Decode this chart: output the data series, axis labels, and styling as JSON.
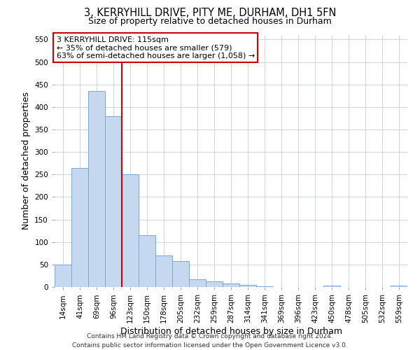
{
  "title_line1": "3, KERRYHILL DRIVE, PITY ME, DURHAM, DH1 5FN",
  "title_line2": "Size of property relative to detached houses in Durham",
  "xlabel": "Distribution of detached houses by size in Durham",
  "ylabel": "Number of detached properties",
  "footer_line1": "Contains HM Land Registry data © Crown copyright and database right 2024.",
  "footer_line2": "Contains public sector information licensed under the Open Government Licence v3.0.",
  "categories": [
    "14sqm",
    "41sqm",
    "69sqm",
    "96sqm",
    "123sqm",
    "150sqm",
    "178sqm",
    "205sqm",
    "232sqm",
    "259sqm",
    "287sqm",
    "314sqm",
    "341sqm",
    "369sqm",
    "396sqm",
    "423sqm",
    "450sqm",
    "478sqm",
    "505sqm",
    "532sqm",
    "559sqm"
  ],
  "values": [
    50,
    265,
    435,
    380,
    250,
    115,
    70,
    58,
    17,
    13,
    8,
    5,
    2,
    0,
    0,
    0,
    3,
    0,
    0,
    0,
    3
  ],
  "bar_color": "#c5d8f0",
  "bar_edge_color": "#7aa8d4",
  "annotation_text_line1": "3 KERRYHILL DRIVE: 115sqm",
  "annotation_text_line2": "← 35% of detached houses are smaller (579)",
  "annotation_text_line3": "63% of semi-detached houses are larger (1,058) →",
  "vline_color": "#cc0000",
  "vline_x": 3.5,
  "annotation_box_edge_color": "#cc0000",
  "annotation_box_face_color": "#ffffff",
  "grid_color": "#d0d8e8",
  "background_color": "#ffffff",
  "ylim": [
    0,
    560
  ],
  "yticks": [
    0,
    50,
    100,
    150,
    200,
    250,
    300,
    350,
    400,
    450,
    500,
    550
  ],
  "title1_fontsize": 10.5,
  "title2_fontsize": 9,
  "annotation_fontsize": 8,
  "xlabel_fontsize": 9,
  "ylabel_fontsize": 9,
  "tick_fontsize": 7.5,
  "footer_fontsize": 6.5
}
